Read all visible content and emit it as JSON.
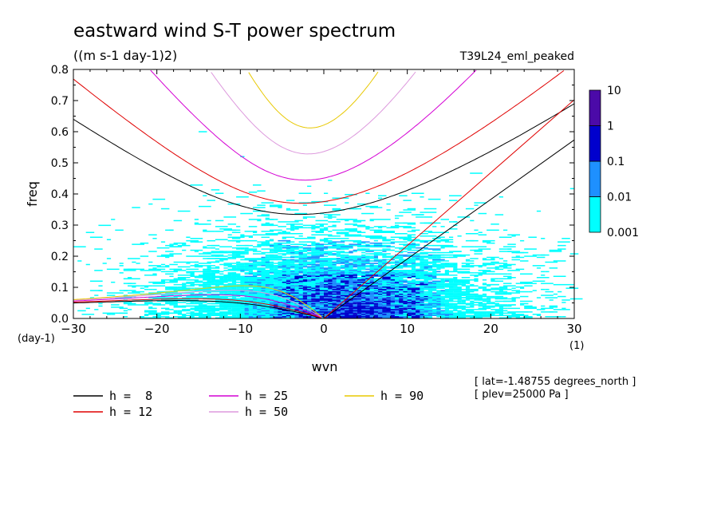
{
  "chart_data": {
    "type": "heatmap",
    "title": "eastward wind S-T power spectrum",
    "units": "((m s-1 day-1)2)",
    "experiment": "T39L24_eml_peaked",
    "xlabel": "wvn",
    "ylabel": "freq",
    "x_unit": "(1)",
    "y_unit": "(day-1)",
    "xlim": [
      -30,
      30
    ],
    "ylim": [
      0,
      0.8
    ],
    "x_ticks": [
      -30,
      -20,
      -10,
      0,
      10,
      20,
      30
    ],
    "y_ticks": [
      0.0,
      0.1,
      0.2,
      0.3,
      0.4,
      0.5,
      0.6,
      0.7,
      0.8
    ],
    "y_tick_labels": [
      "0.0",
      "0.1",
      "0.2",
      "0.3",
      "0.4",
      "0.5",
      "0.6",
      "0.7",
      "0.8"
    ],
    "colorbar": {
      "levels": [
        "0.001",
        "0.01",
        "0.1",
        "1",
        "10"
      ],
      "colors": [
        "#00ffff",
        "#1e90ff",
        "#0000cd",
        "#4b0aa8"
      ]
    },
    "dispersion_curves": [
      {
        "name": "h =  8",
        "h": 8,
        "color": "#000000"
      },
      {
        "name": "h = 12",
        "h": 12,
        "color": "#e00000"
      },
      {
        "name": "h = 25",
        "h": 25,
        "color": "#d400d4"
      },
      {
        "name": "h = 50",
        "h": 50,
        "color": "#dd99dd"
      },
      {
        "name": "h = 90",
        "h": 90,
        "color": "#e8c800"
      }
    ],
    "annotations": [
      "[ lat=-1.48755 degrees_north ]",
      "[ plev=25000 Pa ]"
    ]
  }
}
